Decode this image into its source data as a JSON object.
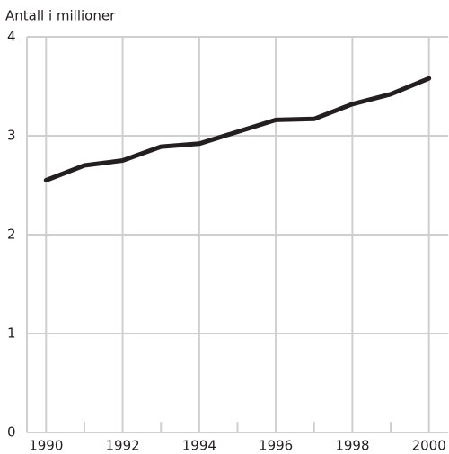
{
  "chart_data": {
    "type": "line",
    "ylabel": "Antall i millioner",
    "x": [
      1990,
      1991,
      1992,
      1993,
      1994,
      1995,
      1996,
      1997,
      1998,
      1999,
      2000
    ],
    "series": [
      {
        "name": "Antall",
        "color": "#231f20",
        "values": [
          2.55,
          2.7,
          2.75,
          2.89,
          2.92,
          3.04,
          3.16,
          3.17,
          3.32,
          3.42,
          3.58
        ]
      }
    ],
    "xlim": [
      1989.5,
      2000.5
    ],
    "xticks": [
      1990,
      1992,
      1994,
      1996,
      1998,
      2000
    ],
    "xminorticks": [
      1991,
      1993,
      1995,
      1997,
      1999
    ],
    "ylim": [
      0,
      4
    ],
    "yticks": [
      0,
      1,
      2,
      3,
      4
    ],
    "grid": true
  }
}
